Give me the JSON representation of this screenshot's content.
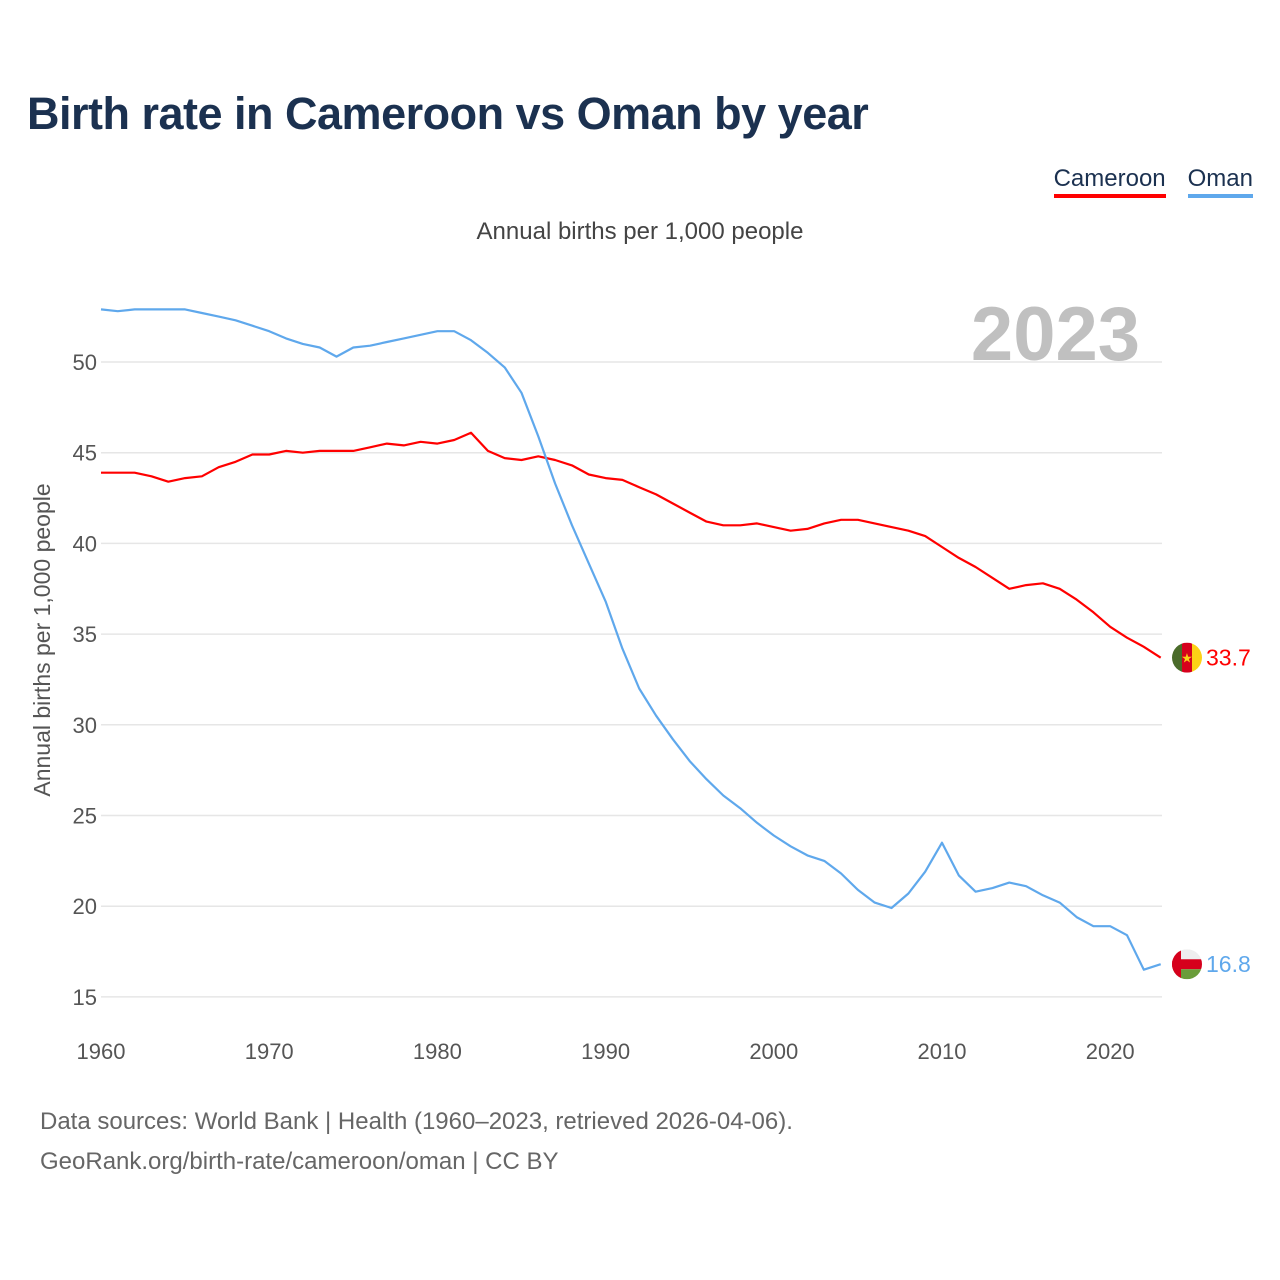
{
  "title": "Birth rate in Cameroon vs Oman by year",
  "subtitle": "Annual births per 1,000 people",
  "year_label": "2023",
  "colors": {
    "Cameroon": "#ff0000",
    "Oman": "#5fa8ec"
  },
  "footer": {
    "line1": "Data sources: World Bank | Health (1960–2023, retrieved 2026-04-06).",
    "line2": "GeoRank.org/birth-rate/cameroon/oman | CC BY"
  },
  "chart_data": {
    "type": "line",
    "title": "Birth rate in Cameroon vs Oman by year",
    "xlabel": "",
    "ylabel": "Annual births per 1,000 people",
    "xlim": [
      1960,
      2023
    ],
    "ylim": [
      15,
      53
    ],
    "x_ticks": [
      "1960",
      "1970",
      "1980",
      "1990",
      "2000",
      "2010",
      "2020"
    ],
    "y_ticks": [
      "15",
      "20",
      "25",
      "30",
      "35",
      "40",
      "45",
      "50"
    ],
    "grid": true,
    "legend_position": "top-right",
    "series": [
      {
        "name": "Cameroon",
        "end_label": "33.7",
        "values": [
          43.9,
          43.9,
          43.9,
          43.7,
          43.4,
          43.6,
          43.7,
          44.2,
          44.5,
          44.9,
          44.9,
          45.1,
          45.0,
          45.1,
          45.1,
          45.1,
          45.3,
          45.5,
          45.4,
          45.6,
          45.5,
          45.7,
          46.1,
          45.1,
          44.7,
          44.6,
          44.8,
          44.6,
          44.3,
          43.8,
          43.6,
          43.5,
          43.1,
          42.7,
          42.2,
          41.7,
          41.2,
          41.0,
          41.0,
          41.1,
          40.9,
          40.7,
          40.8,
          41.1,
          41.3,
          41.3,
          41.1,
          40.9,
          40.7,
          40.4,
          39.8,
          39.2,
          38.7,
          38.1,
          37.5,
          37.7,
          37.8,
          37.5,
          36.9,
          36.2,
          35.4,
          34.8,
          34.3,
          33.7
        ]
      },
      {
        "name": "Oman",
        "end_label": "16.8",
        "values": [
          52.9,
          52.8,
          52.9,
          52.9,
          52.9,
          52.9,
          52.7,
          52.5,
          52.3,
          52.0,
          51.7,
          51.3,
          51.0,
          50.8,
          50.3,
          50.8,
          50.9,
          51.1,
          51.3,
          51.5,
          51.7,
          51.7,
          51.2,
          50.5,
          49.7,
          48.3,
          45.9,
          43.3,
          41.0,
          38.9,
          36.8,
          34.2,
          32.0,
          30.5,
          29.2,
          28.0,
          27.0,
          26.1,
          25.4,
          24.6,
          23.9,
          23.3,
          22.8,
          22.5,
          21.8,
          20.9,
          20.2,
          19.9,
          20.7,
          21.9,
          23.5,
          21.7,
          20.8,
          21.0,
          21.3,
          21.1,
          20.6,
          20.2,
          19.4,
          18.9,
          18.9,
          18.4,
          16.5,
          16.8
        ]
      }
    ]
  }
}
